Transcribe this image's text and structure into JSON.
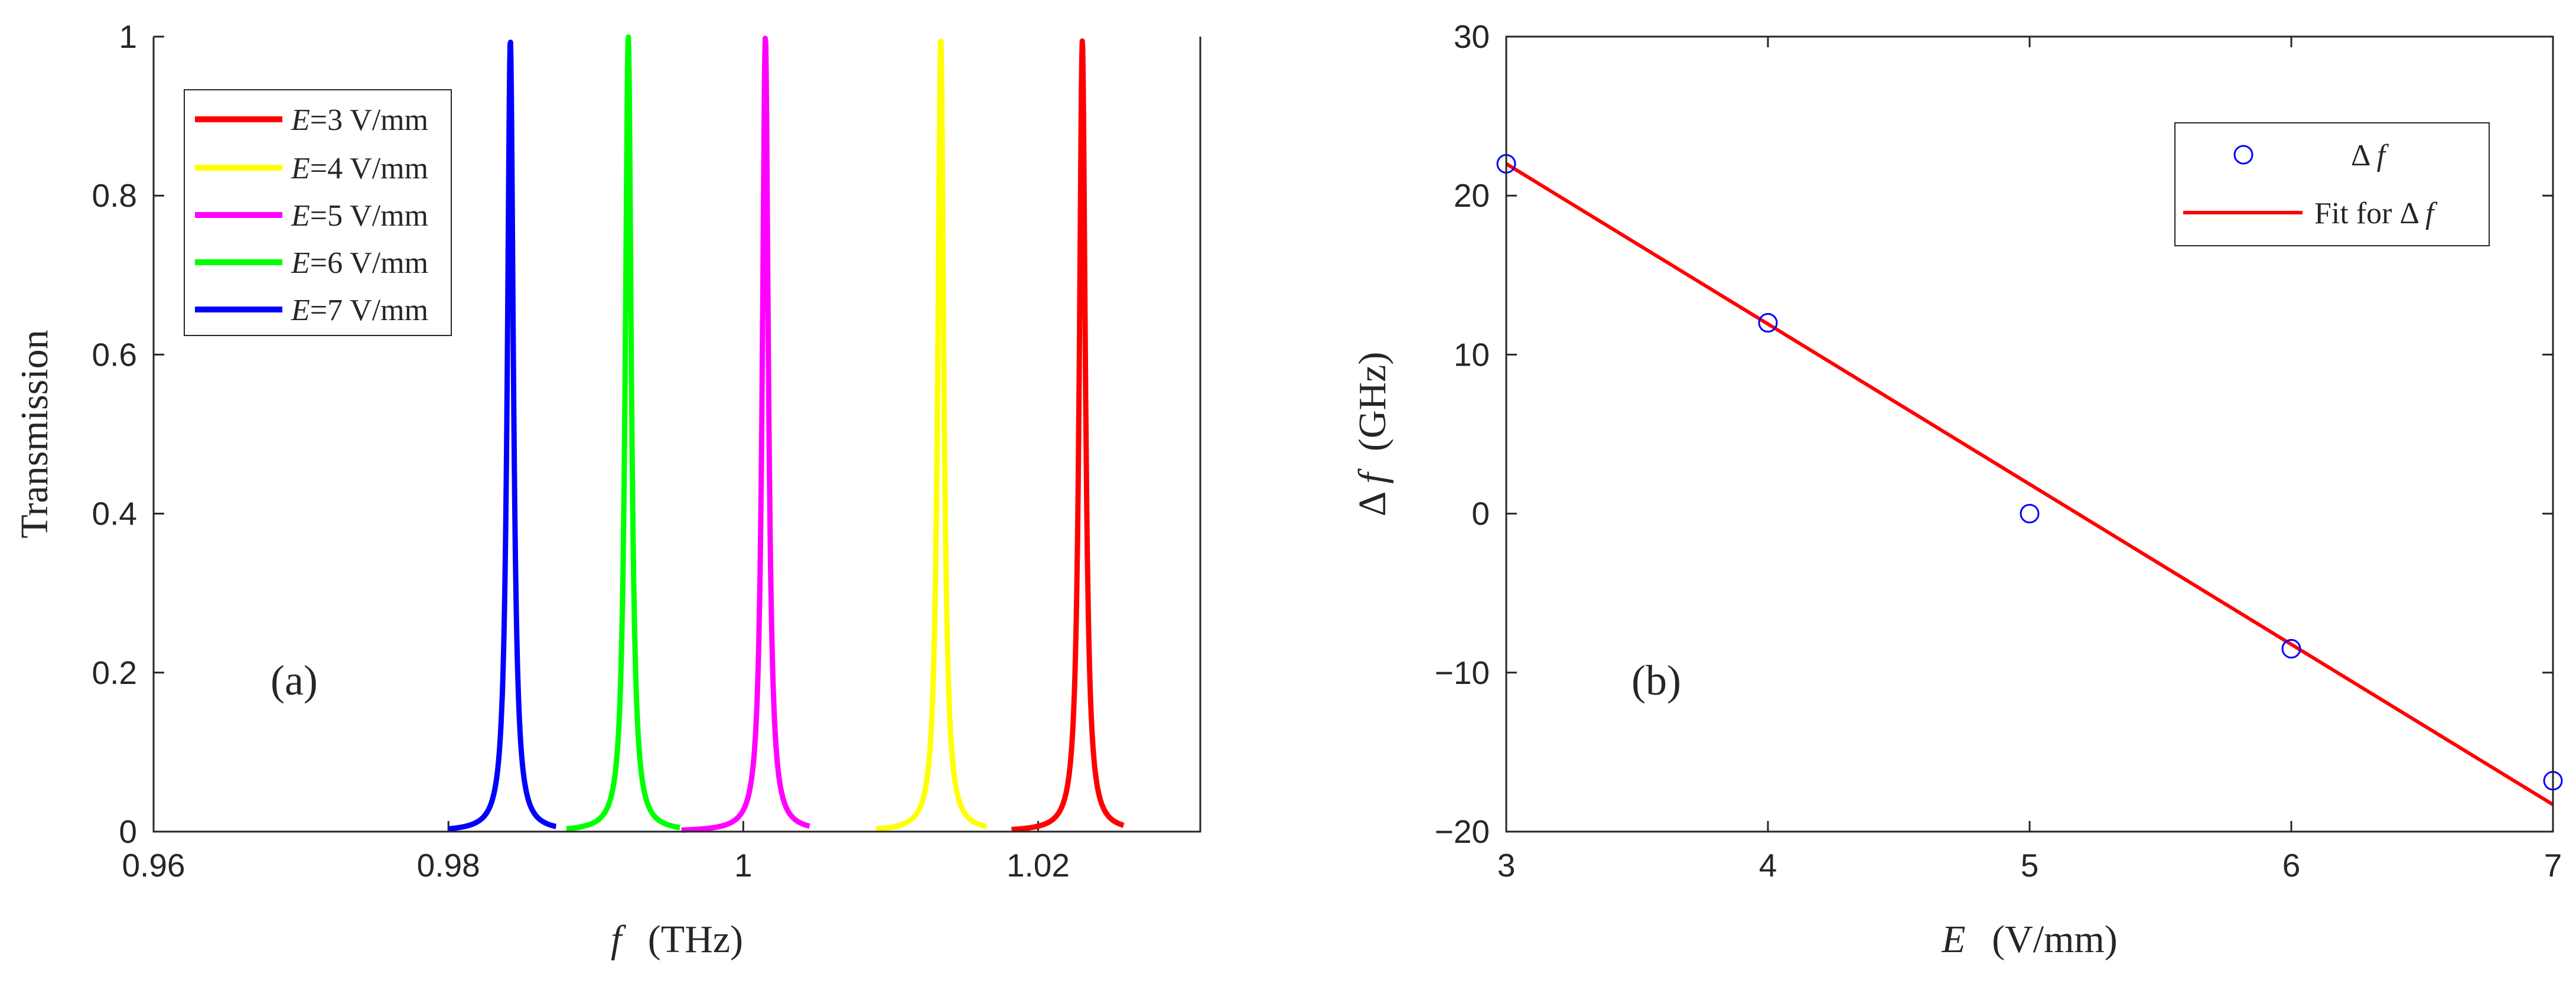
{
  "chart_data": [
    {
      "id": "a",
      "type": "line",
      "panel_label": "(a)",
      "xlabel_var": "f",
      "xlabel_unit": "(THz)",
      "ylabel": "Transmission",
      "xlim": [
        0.96,
        1.031
      ],
      "ylim": [
        0,
        1
      ],
      "xticks": [
        0.96,
        0.98,
        1.0,
        1.02
      ],
      "xtick_labels": [
        "0.96",
        "0.98",
        "1",
        "1.02"
      ],
      "yticks": [
        0,
        0.2,
        0.4,
        0.6,
        0.8,
        1
      ],
      "ytick_labels": [
        "0",
        "0.2",
        "0.4",
        "0.6",
        "0.8",
        "1"
      ],
      "legend_position": "top-left",
      "series": [
        {
          "name": "E=3 V/mm",
          "legend_var": "E",
          "legend_rest": "=3 V/mm",
          "color": "#ff0000",
          "center": 1.023,
          "peak": 0.995,
          "halfwidth": 0.00025,
          "range": [
            1.0182,
            1.0258
          ]
        },
        {
          "name": "E=4 V/mm",
          "legend_var": "E",
          "legend_rest": "=4 V/mm",
          "color": "#ffff00",
          "center": 1.0134,
          "peak": 0.997,
          "halfwidth": 0.00025,
          "range": [
            1.009,
            1.0165
          ]
        },
        {
          "name": "E=5 V/mm",
          "legend_var": "E",
          "legend_rest": "=5 V/mm",
          "color": "#ff00ff",
          "center": 1.0015,
          "peak": 1.0,
          "halfwidth": 0.00025,
          "range": [
            0.9958,
            1.0045
          ]
        },
        {
          "name": "E=6 V/mm",
          "legend_var": "E",
          "legend_rest": "=6 V/mm",
          "color": "#00ff00",
          "center": 0.9922,
          "peak": 1.0,
          "halfwidth": 0.00025,
          "range": [
            0.988,
            0.9957
          ]
        },
        {
          "name": "E=7 V/mm",
          "legend_var": "E",
          "legend_rest": "=7 V/mm",
          "color": "#0000ff",
          "center": 0.9842,
          "peak": 0.995,
          "halfwidth": 0.00025,
          "range": [
            0.98,
            0.9873
          ]
        }
      ]
    },
    {
      "id": "b",
      "type": "scatter",
      "panel_label": "(b)",
      "xlabel_var": "E",
      "xlabel_unit": "(V/mm)",
      "ylabel_delta": "Δ",
      "ylabel_var": "f",
      "ylabel_unit": "(GHz)",
      "xlim": [
        3,
        7
      ],
      "ylim": [
        -20,
        30
      ],
      "xticks": [
        3,
        4,
        5,
        6,
        7
      ],
      "xtick_labels": [
        "3",
        "4",
        "5",
        "6",
        "7"
      ],
      "yticks": [
        -20,
        -10,
        0,
        10,
        20,
        30
      ],
      "ytick_labels": [
        "−20",
        "−10",
        "0",
        "10",
        "20",
        "30"
      ],
      "legend_position": "top-right",
      "series": [
        {
          "name": "Δ f",
          "kind": "markers",
          "color": "#0000ff",
          "x": [
            3,
            4,
            5,
            6,
            7
          ],
          "y": [
            22,
            12,
            0,
            -8.5,
            -16.8
          ]
        },
        {
          "name": "Fit for Δ f",
          "kind": "line",
          "color": "#ff0000",
          "x": [
            3,
            7
          ],
          "y": [
            22,
            -18.3
          ]
        }
      ],
      "legend": [
        {
          "delta": "Δ",
          "var": "f",
          "prefix": ""
        },
        {
          "delta": "Δ",
          "var": "f",
          "prefix": "Fit for "
        }
      ]
    }
  ]
}
